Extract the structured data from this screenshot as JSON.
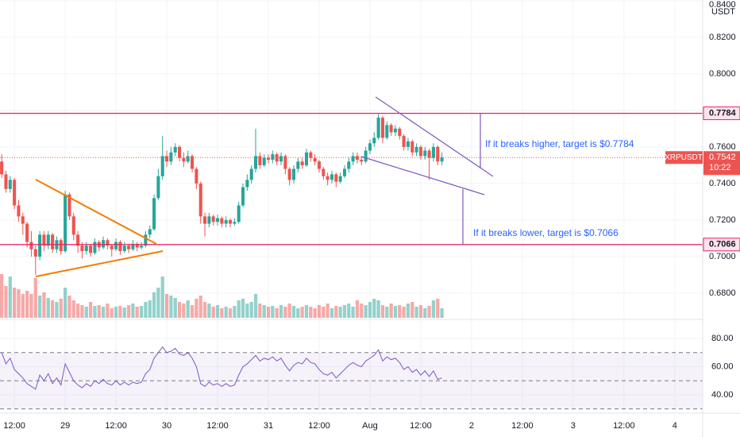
{
  "chart_data": {
    "type": "candlestick",
    "symbol": "XRPUSDT",
    "currency": "USDT",
    "last_price": 0.7542,
    "countdown": "10:22",
    "up_color": "#26a69a",
    "down_color": "#ef5350",
    "level_color": "#e91e63",
    "rsi_color": "#7e57c2",
    "open": [
      0.752,
      0.745,
      0.737,
      0.742,
      0.728,
      0.722,
      0.718,
      0.708,
      0.704,
      0.7,
      0.712,
      0.706,
      0.712,
      0.704,
      0.709,
      0.703,
      0.734,
      0.722,
      0.712,
      0.706,
      0.703,
      0.706,
      0.702,
      0.708,
      0.705,
      0.709,
      0.706,
      0.704,
      0.708,
      0.703,
      0.706,
      0.704,
      0.707,
      0.705,
      0.706,
      0.712,
      0.715,
      0.732,
      0.744,
      0.755,
      0.752,
      0.757,
      0.76,
      0.754,
      0.752,
      0.755,
      0.748,
      0.74,
      0.722,
      0.718,
      0.722,
      0.719,
      0.721,
      0.718,
      0.72,
      0.718,
      0.719,
      0.728,
      0.738,
      0.742,
      0.748,
      0.755,
      0.75,
      0.754,
      0.753,
      0.756,
      0.752,
      0.755,
      0.748,
      0.742,
      0.748,
      0.752,
      0.75,
      0.757,
      0.754,
      0.752,
      0.748,
      0.744,
      0.742,
      0.745,
      0.741,
      0.744,
      0.748,
      0.752,
      0.755,
      0.753,
      0.752,
      0.758,
      0.762,
      0.765,
      0.776,
      0.765,
      0.772,
      0.768,
      0.77,
      0.766,
      0.76,
      0.763,
      0.757,
      0.76,
      0.755,
      0.758,
      0.754,
      0.76,
      0.752
    ],
    "high": [
      0.756,
      0.747,
      0.744,
      0.743,
      0.731,
      0.724,
      0.719,
      0.714,
      0.706,
      0.714,
      0.714,
      0.714,
      0.713,
      0.711,
      0.71,
      0.736,
      0.735,
      0.724,
      0.714,
      0.708,
      0.708,
      0.707,
      0.71,
      0.709,
      0.711,
      0.71,
      0.707,
      0.71,
      0.709,
      0.708,
      0.707,
      0.709,
      0.708,
      0.708,
      0.714,
      0.717,
      0.734,
      0.748,
      0.766,
      0.758,
      0.76,
      0.762,
      0.761,
      0.757,
      0.758,
      0.756,
      0.749,
      0.741,
      0.724,
      0.724,
      0.723,
      0.723,
      0.722,
      0.722,
      0.721,
      0.721,
      0.73,
      0.74,
      0.745,
      0.75,
      0.77,
      0.757,
      0.756,
      0.756,
      0.758,
      0.757,
      0.757,
      0.756,
      0.749,
      0.75,
      0.754,
      0.754,
      0.759,
      0.758,
      0.756,
      0.753,
      0.749,
      0.746,
      0.747,
      0.746,
      0.746,
      0.75,
      0.754,
      0.757,
      0.757,
      0.755,
      0.76,
      0.764,
      0.768,
      0.778,
      0.777,
      0.774,
      0.773,
      0.772,
      0.771,
      0.767,
      0.765,
      0.764,
      0.762,
      0.761,
      0.76,
      0.759,
      0.762,
      0.761,
      0.757
    ],
    "low": [
      0.743,
      0.735,
      0.735,
      0.726,
      0.719,
      0.712,
      0.705,
      0.7,
      0.69,
      0.698,
      0.703,
      0.704,
      0.702,
      0.702,
      0.701,
      0.702,
      0.72,
      0.709,
      0.702,
      0.699,
      0.701,
      0.7,
      0.701,
      0.703,
      0.704,
      0.704,
      0.7,
      0.703,
      0.701,
      0.702,
      0.702,
      0.703,
      0.703,
      0.704,
      0.705,
      0.71,
      0.714,
      0.731,
      0.742,
      0.749,
      0.75,
      0.755,
      0.752,
      0.749,
      0.751,
      0.746,
      0.737,
      0.718,
      0.711,
      0.716,
      0.717,
      0.717,
      0.716,
      0.716,
      0.716,
      0.717,
      0.718,
      0.727,
      0.736,
      0.74,
      0.746,
      0.748,
      0.749,
      0.751,
      0.751,
      0.75,
      0.75,
      0.745,
      0.739,
      0.74,
      0.746,
      0.748,
      0.749,
      0.752,
      0.75,
      0.746,
      0.742,
      0.739,
      0.74,
      0.738,
      0.74,
      0.743,
      0.746,
      0.75,
      0.751,
      0.75,
      0.751,
      0.756,
      0.76,
      0.764,
      0.762,
      0.764,
      0.766,
      0.766,
      0.764,
      0.758,
      0.758,
      0.755,
      0.755,
      0.753,
      0.753,
      0.742,
      0.752,
      0.75,
      0.75
    ],
    "close": [
      0.745,
      0.737,
      0.742,
      0.728,
      0.722,
      0.718,
      0.708,
      0.704,
      0.7,
      0.712,
      0.706,
      0.712,
      0.704,
      0.709,
      0.703,
      0.734,
      0.722,
      0.712,
      0.706,
      0.703,
      0.706,
      0.702,
      0.708,
      0.705,
      0.709,
      0.706,
      0.704,
      0.708,
      0.703,
      0.706,
      0.704,
      0.707,
      0.705,
      0.706,
      0.712,
      0.715,
      0.732,
      0.744,
      0.755,
      0.752,
      0.757,
      0.76,
      0.754,
      0.752,
      0.755,
      0.748,
      0.74,
      0.722,
      0.718,
      0.722,
      0.719,
      0.721,
      0.718,
      0.72,
      0.718,
      0.719,
      0.728,
      0.738,
      0.742,
      0.748,
      0.755,
      0.75,
      0.754,
      0.753,
      0.756,
      0.752,
      0.755,
      0.748,
      0.742,
      0.748,
      0.752,
      0.75,
      0.757,
      0.754,
      0.752,
      0.748,
      0.744,
      0.742,
      0.745,
      0.741,
      0.744,
      0.748,
      0.752,
      0.755,
      0.753,
      0.752,
      0.758,
      0.762,
      0.765,
      0.776,
      0.765,
      0.772,
      0.768,
      0.77,
      0.766,
      0.76,
      0.763,
      0.757,
      0.76,
      0.755,
      0.758,
      0.754,
      0.76,
      0.752,
      0.7542
    ],
    "volume": [
      55,
      40,
      52,
      38,
      36,
      30,
      34,
      30,
      50,
      28,
      32,
      25,
      22,
      20,
      24,
      38,
      28,
      22,
      18,
      16,
      14,
      20,
      15,
      16,
      14,
      18,
      12,
      14,
      15,
      13,
      16,
      18,
      14,
      15,
      20,
      22,
      32,
      38,
      52,
      30,
      28,
      25,
      20,
      18,
      22,
      16,
      24,
      28,
      20,
      18,
      14,
      16,
      12,
      14,
      12,
      15,
      22,
      24,
      18,
      20,
      30,
      18,
      16,
      14,
      15,
      12,
      16,
      14,
      18,
      15,
      12,
      14,
      16,
      14,
      12,
      16,
      14,
      18,
      12,
      15,
      14,
      16,
      18,
      14,
      22,
      18,
      16,
      20,
      24,
      22,
      16,
      14,
      18,
      15,
      16,
      14,
      18,
      20,
      14,
      16,
      12,
      15,
      22,
      24,
      12
    ],
    "rsi": [
      70,
      62,
      66,
      58,
      55,
      52,
      48,
      46,
      44,
      54,
      50,
      55,
      48,
      52,
      47,
      62,
      56,
      50,
      47,
      45,
      48,
      46,
      50,
      48,
      51,
      48,
      47,
      50,
      47,
      49,
      47,
      49,
      48,
      49,
      55,
      58,
      66,
      70,
      74,
      70,
      71,
      73,
      69,
      68,
      70,
      66,
      60,
      48,
      46,
      49,
      47,
      48,
      46,
      48,
      46,
      47,
      54,
      60,
      62,
      65,
      68,
      64,
      66,
      65,
      67,
      64,
      66,
      61,
      57,
      61,
      63,
      62,
      66,
      63,
      62,
      58,
      55,
      54,
      56,
      52,
      55,
      58,
      61,
      63,
      61,
      60,
      64,
      66,
      68,
      72,
      64,
      67,
      65,
      66,
      63,
      58,
      60,
      56,
      58,
      54,
      57,
      53,
      57,
      51,
      52
    ],
    "xlim": [
      -0.4,
      165.6
    ],
    "xticks": [
      {
        "value": 3,
        "label": "12:00"
      },
      {
        "value": 15,
        "label": "29"
      },
      {
        "value": 27,
        "label": "12:00"
      },
      {
        "value": 39,
        "label": "30"
      },
      {
        "value": 51,
        "label": "12:00"
      },
      {
        "value": 63,
        "label": "31"
      },
      {
        "value": 75,
        "label": "12:00"
      },
      {
        "value": 87,
        "label": "Aug"
      },
      {
        "value": 99,
        "label": "12:00"
      },
      {
        "value": 111,
        "label": "2"
      },
      {
        "value": 123,
        "label": "12:00"
      },
      {
        "value": 135,
        "label": "3"
      },
      {
        "value": 147,
        "label": "12:00"
      },
      {
        "value": 159,
        "label": "4"
      }
    ],
    "ylim": [
      0.6665,
      0.8404
    ],
    "yticks": [
      {
        "value": 0.84,
        "label": "0.8400"
      },
      {
        "value": 0.82,
        "label": "0.8200"
      },
      {
        "value": 0.8,
        "label": "0.8000"
      },
      {
        "value": 0.78,
        "label": "0.7800"
      },
      {
        "value": 0.76,
        "label": "0.7600"
      },
      {
        "value": 0.74,
        "label": "0.7400"
      },
      {
        "value": 0.72,
        "label": "0.7200"
      },
      {
        "value": 0.7,
        "label": "0.7000"
      },
      {
        "value": 0.68,
        "label": "0.6800"
      }
    ],
    "rsi_ylim": [
      27,
      93
    ],
    "rsi_yticks": [
      {
        "value": 80,
        "label": "80.00"
      },
      {
        "value": 60,
        "label": "60.00"
      },
      {
        "value": 40,
        "label": "40.00"
      }
    ],
    "rsi_levels": [
      70,
      50,
      30
    ],
    "levels": [
      0.7784,
      0.7066
    ],
    "annotations": [
      "If it breaks higher, target is $0.7784",
      "If it breaks lower, target is $0.7066"
    ]
  }
}
